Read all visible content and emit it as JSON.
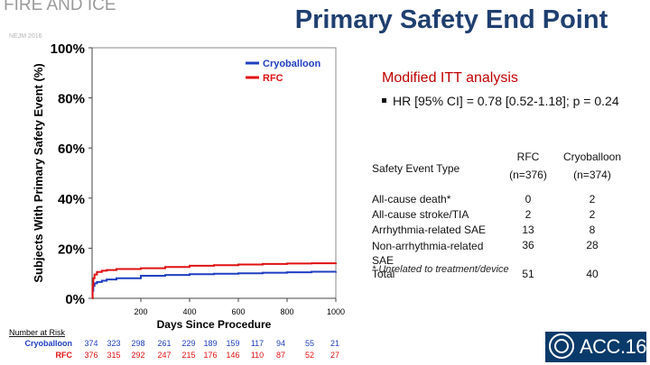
{
  "slide": {
    "trial_name": "FIRE AND ICE",
    "trial_subtitle": "NEJM 2016",
    "title": "Primary Safety End Point",
    "analysis_title": "Modified ITT analysis",
    "bullet": "HR [95% CI] = 0.78 [0.52-1.18]; p = 0.24",
    "logo_text": "ACC.16"
  },
  "table": {
    "header": {
      "col0": "Safety Event Type",
      "col1": "RFC (n=376)",
      "col2": "Cryoballoon (n=374)"
    },
    "rows": [
      {
        "label": "All-cause death*",
        "rfc": "0",
        "cryo": "2"
      },
      {
        "label": "All-cause stroke/TIA",
        "rfc": "2",
        "cryo": "2"
      },
      {
        "label": "Arrhythmia-related SAE",
        "rfc": "13",
        "cryo": "8"
      },
      {
        "label": "Non-arrhythmia-related SAE",
        "rfc": "36",
        "cryo": "28"
      },
      {
        "label": "Total",
        "rfc": "51",
        "cryo": "40"
      }
    ],
    "footnote": "* Unrelated to treatment/device"
  },
  "chart_data": {
    "type": "line",
    "title": "",
    "xlabel": "Days Since Procedure",
    "ylabel": "Subjects With Primary Safety Event (%)",
    "xlim": [
      0,
      1000
    ],
    "ylim": [
      0,
      100
    ],
    "x_ticks": [
      200,
      400,
      600,
      800,
      1000
    ],
    "y_ticks": [
      0,
      20,
      40,
      60,
      80,
      100
    ],
    "y_tick_labels": [
      "0%",
      "20%",
      "40%",
      "60%",
      "80%",
      "100%"
    ],
    "legend": [
      "Cryoballoon",
      "RFC"
    ],
    "series": [
      {
        "name": "Cryoballoon",
        "color": "#1f3fbf",
        "x": [
          0,
          2,
          5,
          10,
          20,
          40,
          60,
          100,
          200,
          300,
          400,
          500,
          600,
          700,
          800,
          900,
          1000
        ],
        "y": [
          0,
          3,
          5,
          6,
          6.5,
          7,
          7.5,
          8,
          9,
          9.3,
          9.6,
          9.8,
          10,
          10.2,
          10.4,
          10.6,
          10.7
        ]
      },
      {
        "name": "RFC",
        "color": "#e01010",
        "x": [
          0,
          2,
          5,
          10,
          20,
          40,
          60,
          100,
          200,
          300,
          400,
          500,
          600,
          700,
          800,
          900,
          1000
        ],
        "y": [
          0,
          5,
          8,
          9.5,
          10.5,
          11,
          11.3,
          11.7,
          12,
          12.5,
          13,
          13.2,
          13.5,
          13.7,
          13.9,
          14,
          14.2
        ]
      }
    ],
    "risk_table": {
      "title": "Number at Risk",
      "rows": [
        {
          "name": "Cryoballoon",
          "color": "#1f3fbf",
          "values": [
            "374",
            "323",
            "298",
            "261",
            "229",
            "189",
            "159",
            "117",
            "94",
            "55",
            "21"
          ]
        },
        {
          "name": "RFC",
          "color": "#e01010",
          "values": [
            "376",
            "315",
            "292",
            "247",
            "215",
            "176",
            "146",
            "110",
            "87",
            "52",
            "27"
          ]
        }
      ]
    }
  }
}
